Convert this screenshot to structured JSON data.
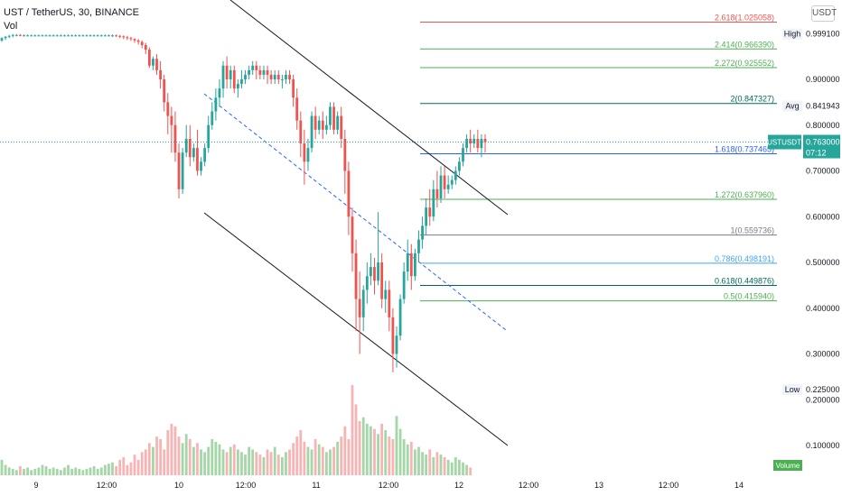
{
  "header": {
    "symbol_title": "UST / TetherUS, 30, BINANCE",
    "volume_label": "Vol",
    "currency_button": "USDT"
  },
  "colors": {
    "up": "#26a69a",
    "down": "#ef5350",
    "vol_up": "#a5d6a7",
    "vol_down": "#f8b4b4",
    "channel": "#131722",
    "midline": "#2962ff",
    "price_line": "#26a69a"
  },
  "chart_data": {
    "type": "candlestick",
    "x_ticks": [
      "9",
      "12:00",
      "10",
      "12:00",
      "11",
      "12:00",
      "12",
      "12:00",
      "13",
      "12:00",
      "14"
    ],
    "y_ticks": [
      "0.900000",
      "0.800000",
      "0.700000",
      "0.600000",
      "0.500000",
      "0.400000",
      "0.300000",
      "0.200000",
      "0.100000"
    ],
    "current": {
      "label": "USTUSDT",
      "price": "0.763000",
      "countdown": "07:12",
      "value": 0.763
    },
    "high": {
      "label": "High",
      "price": "0.999100",
      "value": 0.9991
    },
    "avg": {
      "label": "Avg",
      "price": "0.841943",
      "value": 0.841943
    },
    "low": {
      "label": "Low",
      "price": "0.225000",
      "value": 0.225
    },
    "volume_tag": "Volume",
    "fib_levels": [
      {
        "ratio": "2.618",
        "price": "1.025058",
        "color": "#ef5350"
      },
      {
        "ratio": "2.414",
        "price": "0.966390",
        "color": "#4caf50"
      },
      {
        "ratio": "2.272",
        "price": "0.925552",
        "color": "#4caf50"
      },
      {
        "ratio": "2",
        "price": "0.847327",
        "color": "#00695c"
      },
      {
        "ratio": "1.618",
        "price": "0.737465",
        "color": "#2962ff"
      },
      {
        "ratio": "1.272",
        "price": "0.637960",
        "color": "#4caf50"
      },
      {
        "ratio": "1",
        "price": "0.559736",
        "color": "#787b86"
      },
      {
        "ratio": "0.786",
        "price": "0.498191",
        "color": "#42a5f5"
      },
      {
        "ratio": "0.618",
        "price": "0.449876",
        "color": "#00695c"
      },
      {
        "ratio": "0.5",
        "price": "0.415940",
        "color": "#4caf50"
      }
    ],
    "candles": [
      {
        "o": 0.985,
        "h": 0.992,
        "c": 0.99,
        "l": 0.982
      },
      {
        "o": 0.99,
        "h": 0.995,
        "c": 0.993,
        "l": 0.986
      },
      {
        "o": 0.993,
        "h": 0.997,
        "c": 0.995,
        "l": 0.99
      },
      {
        "o": 0.995,
        "h": 0.999,
        "c": 0.997,
        "l": 0.992
      },
      {
        "o": 0.997,
        "h": 0.999,
        "c": 0.997,
        "l": 0.994
      },
      {
        "o": 0.997,
        "h": 0.999,
        "c": 0.996,
        "l": 0.994
      },
      {
        "o": 0.996,
        "h": 0.998,
        "c": 0.996,
        "l": 0.994
      },
      {
        "o": 0.996,
        "h": 0.998,
        "c": 0.996,
        "l": 0.994
      },
      {
        "o": 0.996,
        "h": 0.998,
        "c": 0.996,
        "l": 0.994
      },
      {
        "o": 0.996,
        "h": 0.998,
        "c": 0.996,
        "l": 0.994
      },
      {
        "o": 0.996,
        "h": 0.998,
        "c": 0.996,
        "l": 0.994
      },
      {
        "o": 0.996,
        "h": 0.998,
        "c": 0.996,
        "l": 0.994
      },
      {
        "o": 0.996,
        "h": 0.998,
        "c": 0.996,
        "l": 0.994
      },
      {
        "o": 0.996,
        "h": 0.998,
        "c": 0.996,
        "l": 0.994
      },
      {
        "o": 0.996,
        "h": 0.998,
        "c": 0.996,
        "l": 0.994
      },
      {
        "o": 0.996,
        "h": 0.998,
        "c": 0.996,
        "l": 0.994
      },
      {
        "o": 0.996,
        "h": 0.998,
        "c": 0.996,
        "l": 0.994
      },
      {
        "o": 0.996,
        "h": 0.998,
        "c": 0.996,
        "l": 0.994
      },
      {
        "o": 0.996,
        "h": 0.998,
        "c": 0.996,
        "l": 0.994
      },
      {
        "o": 0.996,
        "h": 0.998,
        "c": 0.996,
        "l": 0.994
      },
      {
        "o": 0.996,
        "h": 0.998,
        "c": 0.996,
        "l": 0.994
      },
      {
        "o": 0.996,
        "h": 0.998,
        "c": 0.996,
        "l": 0.994
      },
      {
        "o": 0.996,
        "h": 0.998,
        "c": 0.996,
        "l": 0.994
      },
      {
        "o": 0.996,
        "h": 0.998,
        "c": 0.996,
        "l": 0.994
      },
      {
        "o": 0.996,
        "h": 0.998,
        "c": 0.996,
        "l": 0.994
      },
      {
        "o": 0.996,
        "h": 0.998,
        "c": 0.996,
        "l": 0.994
      },
      {
        "o": 0.996,
        "h": 0.998,
        "c": 0.996,
        "l": 0.994
      },
      {
        "o": 0.996,
        "h": 0.998,
        "c": 0.996,
        "l": 0.994
      },
      {
        "o": 0.996,
        "h": 0.998,
        "c": 0.996,
        "l": 0.994
      },
      {
        "o": 0.996,
        "h": 0.998,
        "c": 0.996,
        "l": 0.994
      },
      {
        "o": 0.996,
        "h": 0.998,
        "c": 0.996,
        "l": 0.993
      },
      {
        "o": 0.996,
        "h": 0.998,
        "c": 0.995,
        "l": 0.993
      },
      {
        "o": 0.995,
        "h": 0.997,
        "c": 0.994,
        "l": 0.99
      },
      {
        "o": 0.994,
        "h": 0.996,
        "c": 0.992,
        "l": 0.988
      },
      {
        "o": 0.992,
        "h": 0.995,
        "c": 0.99,
        "l": 0.986
      },
      {
        "o": 0.99,
        "h": 0.993,
        "c": 0.988,
        "l": 0.984
      },
      {
        "o": 0.988,
        "h": 0.99,
        "c": 0.985,
        "l": 0.98
      },
      {
        "o": 0.985,
        "h": 0.988,
        "c": 0.982,
        "l": 0.976
      },
      {
        "o": 0.982,
        "h": 0.985,
        "c": 0.975,
        "l": 0.968
      },
      {
        "o": 0.975,
        "h": 0.98,
        "c": 0.965,
        "l": 0.955
      },
      {
        "o": 0.965,
        "h": 0.97,
        "c": 0.93,
        "l": 0.925
      },
      {
        "o": 0.93,
        "h": 0.95,
        "c": 0.945,
        "l": 0.92
      },
      {
        "o": 0.945,
        "h": 0.955,
        "c": 0.92,
        "l": 0.91
      },
      {
        "o": 0.92,
        "h": 0.94,
        "c": 0.9,
        "l": 0.88
      },
      {
        "o": 0.9,
        "h": 0.91,
        "c": 0.85,
        "l": 0.83
      },
      {
        "o": 0.85,
        "h": 0.87,
        "c": 0.82,
        "l": 0.78
      },
      {
        "o": 0.82,
        "h": 0.84,
        "c": 0.8,
        "l": 0.74
      },
      {
        "o": 0.8,
        "h": 0.83,
        "c": 0.74,
        "l": 0.72
      },
      {
        "o": 0.74,
        "h": 0.76,
        "c": 0.66,
        "l": 0.64
      },
      {
        "o": 0.66,
        "h": 0.75,
        "c": 0.74,
        "l": 0.65
      },
      {
        "o": 0.74,
        "h": 0.8,
        "c": 0.77,
        "l": 0.73
      },
      {
        "o": 0.77,
        "h": 0.8,
        "c": 0.73,
        "l": 0.71
      },
      {
        "o": 0.73,
        "h": 0.76,
        "c": 0.75,
        "l": 0.72
      },
      {
        "o": 0.75,
        "h": 0.79,
        "c": 0.7,
        "l": 0.69
      },
      {
        "o": 0.7,
        "h": 0.73,
        "c": 0.72,
        "l": 0.69
      },
      {
        "o": 0.72,
        "h": 0.76,
        "c": 0.75,
        "l": 0.71
      },
      {
        "o": 0.75,
        "h": 0.82,
        "c": 0.8,
        "l": 0.74
      },
      {
        "o": 0.8,
        "h": 0.85,
        "c": 0.83,
        "l": 0.79
      },
      {
        "o": 0.83,
        "h": 0.88,
        "c": 0.86,
        "l": 0.81
      },
      {
        "o": 0.86,
        "h": 0.9,
        "c": 0.88,
        "l": 0.84
      },
      {
        "o": 0.88,
        "h": 0.94,
        "c": 0.93,
        "l": 0.86
      },
      {
        "o": 0.93,
        "h": 0.95,
        "c": 0.9,
        "l": 0.88
      },
      {
        "o": 0.9,
        "h": 0.93,
        "c": 0.92,
        "l": 0.88
      },
      {
        "o": 0.92,
        "h": 0.93,
        "c": 0.88,
        "l": 0.87
      },
      {
        "o": 0.88,
        "h": 0.9,
        "c": 0.89,
        "l": 0.86
      },
      {
        "o": 0.89,
        "h": 0.92,
        "c": 0.9,
        "l": 0.88
      },
      {
        "o": 0.9,
        "h": 0.92,
        "c": 0.91,
        "l": 0.89
      },
      {
        "o": 0.91,
        "h": 0.93,
        "c": 0.92,
        "l": 0.9
      },
      {
        "o": 0.92,
        "h": 0.94,
        "c": 0.93,
        "l": 0.91
      },
      {
        "o": 0.93,
        "h": 0.94,
        "c": 0.92,
        "l": 0.9
      },
      {
        "o": 0.92,
        "h": 0.93,
        "c": 0.91,
        "l": 0.9
      },
      {
        "o": 0.91,
        "h": 0.93,
        "c": 0.92,
        "l": 0.9
      },
      {
        "o": 0.92,
        "h": 0.93,
        "c": 0.91,
        "l": 0.89
      },
      {
        "o": 0.91,
        "h": 0.92,
        "c": 0.9,
        "l": 0.89
      },
      {
        "o": 0.9,
        "h": 0.92,
        "c": 0.91,
        "l": 0.89
      },
      {
        "o": 0.91,
        "h": 0.92,
        "c": 0.9,
        "l": 0.89
      },
      {
        "o": 0.9,
        "h": 0.91,
        "c": 0.9,
        "l": 0.88
      },
      {
        "o": 0.9,
        "h": 0.92,
        "c": 0.91,
        "l": 0.89
      },
      {
        "o": 0.91,
        "h": 0.92,
        "c": 0.9,
        "l": 0.89
      },
      {
        "o": 0.9,
        "h": 0.91,
        "c": 0.86,
        "l": 0.84
      },
      {
        "o": 0.86,
        "h": 0.88,
        "c": 0.81,
        "l": 0.79
      },
      {
        "o": 0.81,
        "h": 0.83,
        "c": 0.76,
        "l": 0.73
      },
      {
        "o": 0.76,
        "h": 0.79,
        "c": 0.72,
        "l": 0.67
      },
      {
        "o": 0.72,
        "h": 0.77,
        "c": 0.75,
        "l": 0.7
      },
      {
        "o": 0.75,
        "h": 0.83,
        "c": 0.82,
        "l": 0.74
      },
      {
        "o": 0.82,
        "h": 0.84,
        "c": 0.79,
        "l": 0.77
      },
      {
        "o": 0.79,
        "h": 0.82,
        "c": 0.81,
        "l": 0.78
      },
      {
        "o": 0.81,
        "h": 0.83,
        "c": 0.79,
        "l": 0.77
      },
      {
        "o": 0.79,
        "h": 0.82,
        "c": 0.8,
        "l": 0.78
      },
      {
        "o": 0.8,
        "h": 0.85,
        "c": 0.84,
        "l": 0.79
      },
      {
        "o": 0.84,
        "h": 0.85,
        "c": 0.79,
        "l": 0.78
      },
      {
        "o": 0.79,
        "h": 0.83,
        "c": 0.82,
        "l": 0.78
      },
      {
        "o": 0.82,
        "h": 0.84,
        "c": 0.77,
        "l": 0.75
      },
      {
        "o": 0.77,
        "h": 0.79,
        "c": 0.7,
        "l": 0.65
      },
      {
        "o": 0.7,
        "h": 0.72,
        "c": 0.6,
        "l": 0.56
      },
      {
        "o": 0.6,
        "h": 0.62,
        "c": 0.52,
        "l": 0.48
      },
      {
        "o": 0.52,
        "h": 0.55,
        "c": 0.42,
        "l": 0.35
      },
      {
        "o": 0.42,
        "h": 0.48,
        "c": 0.38,
        "l": 0.3
      },
      {
        "o": 0.38,
        "h": 0.45,
        "c": 0.44,
        "l": 0.35
      },
      {
        "o": 0.44,
        "h": 0.5,
        "c": 0.47,
        "l": 0.41
      },
      {
        "o": 0.47,
        "h": 0.52,
        "c": 0.49,
        "l": 0.45
      },
      {
        "o": 0.49,
        "h": 0.51,
        "c": 0.46,
        "l": 0.43
      },
      {
        "o": 0.46,
        "h": 0.61,
        "c": 0.5,
        "l": 0.45
      },
      {
        "o": 0.5,
        "h": 0.52,
        "c": 0.42,
        "l": 0.4
      },
      {
        "o": 0.42,
        "h": 0.46,
        "c": 0.44,
        "l": 0.39
      },
      {
        "o": 0.44,
        "h": 0.46,
        "c": 0.38,
        "l": 0.35
      },
      {
        "o": 0.38,
        "h": 0.4,
        "c": 0.3,
        "l": 0.26
      },
      {
        "o": 0.3,
        "h": 0.36,
        "c": 0.34,
        "l": 0.27
      },
      {
        "o": 0.34,
        "h": 0.43,
        "c": 0.42,
        "l": 0.33
      },
      {
        "o": 0.42,
        "h": 0.5,
        "c": 0.48,
        "l": 0.41
      },
      {
        "o": 0.48,
        "h": 0.55,
        "c": 0.52,
        "l": 0.46
      },
      {
        "o": 0.52,
        "h": 0.54,
        "c": 0.47,
        "l": 0.44
      },
      {
        "o": 0.47,
        "h": 0.53,
        "c": 0.52,
        "l": 0.46
      },
      {
        "o": 0.52,
        "h": 0.57,
        "c": 0.55,
        "l": 0.5
      },
      {
        "o": 0.55,
        "h": 0.6,
        "c": 0.58,
        "l": 0.53
      },
      {
        "o": 0.58,
        "h": 0.64,
        "c": 0.62,
        "l": 0.56
      },
      {
        "o": 0.62,
        "h": 0.66,
        "c": 0.6,
        "l": 0.58
      },
      {
        "o": 0.6,
        "h": 0.68,
        "c": 0.66,
        "l": 0.59
      },
      {
        "o": 0.66,
        "h": 0.7,
        "c": 0.64,
        "l": 0.62
      },
      {
        "o": 0.64,
        "h": 0.71,
        "c": 0.69,
        "l": 0.63
      },
      {
        "o": 0.69,
        "h": 0.71,
        "c": 0.66,
        "l": 0.64
      },
      {
        "o": 0.66,
        "h": 0.69,
        "c": 0.67,
        "l": 0.65
      },
      {
        "o": 0.67,
        "h": 0.69,
        "c": 0.68,
        "l": 0.66
      },
      {
        "o": 0.68,
        "h": 0.71,
        "c": 0.7,
        "l": 0.67
      },
      {
        "o": 0.7,
        "h": 0.73,
        "c": 0.72,
        "l": 0.69
      },
      {
        "o": 0.72,
        "h": 0.76,
        "c": 0.75,
        "l": 0.71
      },
      {
        "o": 0.75,
        "h": 0.78,
        "c": 0.77,
        "l": 0.74
      },
      {
        "o": 0.77,
        "h": 0.79,
        "c": 0.76,
        "l": 0.74
      },
      {
        "o": 0.76,
        "h": 0.78,
        "c": 0.77,
        "l": 0.75
      },
      {
        "o": 0.77,
        "h": 0.79,
        "c": 0.75,
        "l": 0.74
      },
      {
        "o": 0.75,
        "h": 0.78,
        "c": 0.77,
        "l": 0.73
      },
      {
        "o": 0.77,
        "h": 0.78,
        "c": 0.763,
        "l": 0.74
      }
    ],
    "volume": [
      12,
      8,
      6,
      5,
      4,
      7,
      5,
      6,
      4,
      5,
      6,
      8,
      7,
      5,
      6,
      5,
      4,
      6,
      8,
      5,
      6,
      5,
      4,
      5,
      6,
      7,
      5,
      6,
      8,
      9,
      10,
      7,
      12,
      14,
      8,
      10,
      16,
      12,
      18,
      20,
      25,
      22,
      30,
      28,
      20,
      35,
      40,
      38,
      30,
      25,
      32,
      28,
      22,
      25,
      20,
      18,
      22,
      28,
      26,
      24,
      20,
      18,
      22,
      24,
      20,
      18,
      16,
      22,
      20,
      18,
      16,
      14,
      20,
      18,
      22,
      16,
      14,
      18,
      20,
      25,
      30,
      35,
      26,
      22,
      20,
      28,
      24,
      22,
      18,
      20,
      22,
      26,
      30,
      38,
      28,
      70,
      55,
      42,
      45,
      40,
      38,
      36,
      32,
      40,
      35,
      30,
      28,
      46,
      36,
      28,
      24,
      26,
      20,
      22,
      18,
      16,
      20,
      14,
      18,
      16,
      14,
      12,
      10,
      14,
      12,
      10,
      8,
      6
    ]
  }
}
